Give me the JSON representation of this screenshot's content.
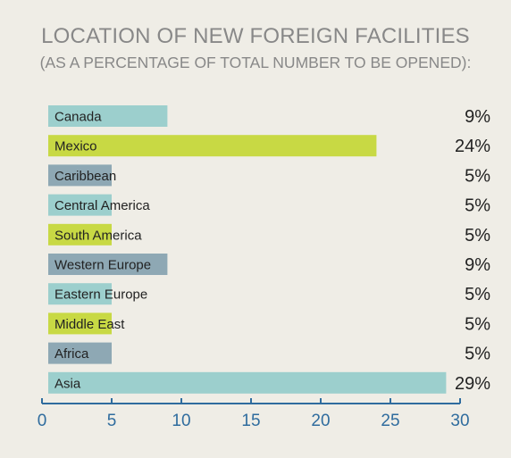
{
  "chart_data": {
    "type": "bar",
    "orientation": "horizontal",
    "title": "LOCATION OF NEW FOREIGN FACILITIES",
    "subtitle": "(AS A PERCENTAGE OF TOTAL NUMBER TO BE OPENED):",
    "categories": [
      "Canada",
      "Mexico",
      "Caribbean",
      "Central America",
      "South America",
      "Western Europe",
      "Eastern Europe",
      "Middle East",
      "Africa",
      "Asia"
    ],
    "values": [
      9,
      24,
      5,
      5,
      5,
      9,
      5,
      5,
      5,
      29
    ],
    "value_labels": [
      "9%",
      "24%",
      "5%",
      "5%",
      "5%",
      "9%",
      "5%",
      "5%",
      "5%",
      "29%"
    ],
    "bar_colors": [
      "#9ccfcd",
      "#c8d944",
      "#8ea8b4",
      "#9ccfcd",
      "#c8d944",
      "#8ea8b4",
      "#9ccfcd",
      "#c8d944",
      "#8ea8b4",
      "#9ccfcd"
    ],
    "xlim": [
      0,
      30
    ],
    "xticks": [
      0,
      5,
      10,
      15,
      20,
      25,
      30
    ],
    "xtick_labels": [
      "0",
      "5",
      "10",
      "15",
      "20",
      "25",
      "30"
    ],
    "grid": false,
    "legend": "none",
    "axis_color": "#2f6c9e"
  }
}
